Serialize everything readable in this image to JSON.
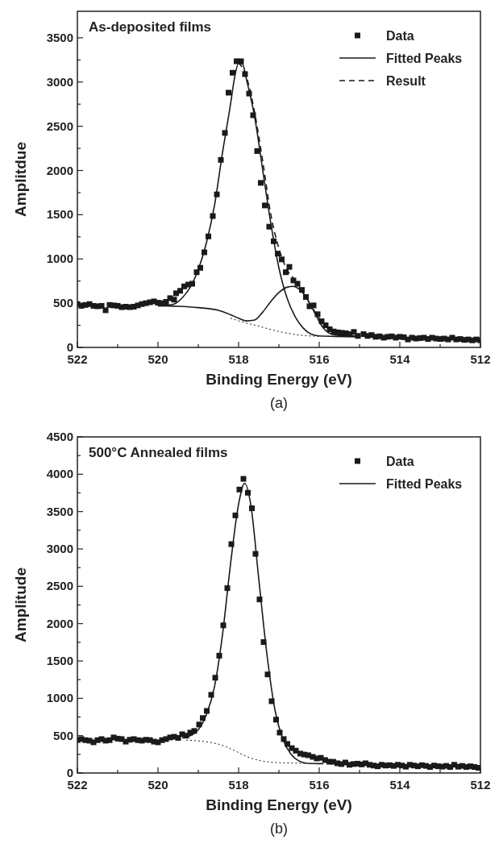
{
  "chart_data": [
    {
      "type": "scatter",
      "title": "As-deposited films",
      "xlabel": "Binding Energy (eV)",
      "ylabel": "Amplitdue",
      "annotations": [
        "(a)"
      ],
      "xlim": [
        522,
        512
      ],
      "ylim": [
        0,
        3800
      ],
      "xticks": [
        522,
        {
          "value": 521,
          "label": null
        },
        520,
        {
          "value": 519,
          "label": null
        },
        518,
        {
          "value": 517,
          "label": null
        },
        516,
        {
          "value": 515,
          "label": null
        },
        514,
        {
          "value": 513,
          "label": null
        },
        512
      ],
      "yticks": [
        0,
        {
          "value": 250,
          "label": null
        },
        500,
        {
          "value": 750,
          "label": null
        },
        1000,
        {
          "value": 1250,
          "label": null
        },
        1500,
        {
          "value": 1750,
          "label": null
        },
        2000,
        {
          "value": 2250,
          "label": null
        },
        2500,
        {
          "value": 2750,
          "label": null
        },
        3000,
        {
          "value": 3250,
          "label": null
        },
        3500
      ],
      "legend": "top right",
      "grid": false,
      "series": [
        {
          "name": "Data",
          "marker": "square",
          "color": "#1a1a1a",
          "x": [
            522,
            521.9,
            521.8,
            521.7,
            521.6,
            521.5,
            521.4,
            521.3,
            521.2,
            521.1,
            521.0,
            520.9,
            520.8,
            520.7,
            520.6,
            520.5,
            520.4,
            520.3,
            520.2,
            520.1,
            520.0,
            519.9,
            519.8,
            519.7,
            519.6,
            519.55,
            519.45,
            519.35,
            519.25,
            519.15,
            519.04,
            518.95,
            518.85,
            518.75,
            518.64,
            518.54,
            518.44,
            518.34,
            518.25,
            518.15,
            518.05,
            517.94,
            517.84,
            517.74,
            517.64,
            517.54,
            517.45,
            517.35,
            517.24,
            517.13,
            517.03,
            516.93,
            516.83,
            516.74,
            516.64,
            516.54,
            516.43,
            516.33,
            516.24,
            516.14,
            516.04,
            515.94,
            515.84,
            515.74,
            515.64,
            515.54,
            515.44,
            515.34,
            515.24,
            515.14,
            515.04,
            514.9,
            514.8,
            514.7,
            514.6,
            514.5,
            514.4,
            514.3,
            514.2,
            514.1,
            514.0,
            513.9,
            513.8,
            513.7,
            513.6,
            513.5,
            513.4,
            513.3,
            513.2,
            513.1,
            513.0,
            512.9,
            512.8,
            512.7,
            512.6,
            512.5,
            512.4,
            512.3,
            512.2,
            512.1,
            512.0
          ],
          "values": [
            490,
            470,
            480,
            490,
            470,
            465,
            470,
            420,
            480,
            475,
            470,
            455,
            460,
            455,
            460,
            475,
            490,
            500,
            510,
            520,
            505,
            500,
            515,
            557,
            540,
            612,
            640,
            690,
            710,
            720,
            850,
            900,
            1075,
            1255,
            1485,
            1730,
            2120,
            2425,
            2880,
            3105,
            3235,
            3235,
            3090,
            2870,
            2625,
            2220,
            1860,
            1605,
            1365,
            1200,
            1060,
            995,
            850,
            910,
            757,
            720,
            650,
            570,
            465,
            475,
            375,
            295,
            250,
            205,
            180,
            170,
            165,
            160,
            150,
            175,
            130,
            150,
            130,
            140,
            120,
            125,
            110,
            120,
            125,
            110,
            120,
            115,
            90,
            110,
            100,
            105,
            110,
            95,
            110,
            100,
            95,
            100,
            90,
            110,
            90,
            95,
            85,
            90,
            80,
            90,
            80
          ]
        },
        {
          "name": "Fitted Peaks",
          "type": "line",
          "line_style": "solid",
          "color": "#1a1a1a",
          "x": [
            520.0,
            519.8,
            519.6,
            519.4,
            519.2,
            519.0,
            518.8,
            518.6,
            518.4,
            518.2,
            518.1,
            518.0,
            517.9,
            517.8,
            517.6,
            517.4,
            517.2,
            517.0,
            516.8,
            516.6,
            516.4,
            516.2,
            516.0,
            515.0
          ],
          "values": [
            470,
            475,
            490,
            560,
            680,
            880,
            1180,
            1600,
            2200,
            2750,
            3050,
            3210,
            3200,
            3020,
            2600,
            2000,
            1400,
            900,
            560,
            350,
            220,
            150,
            130,
            120
          ]
        },
        {
          "type": "line",
          "line_style": "solid",
          "color": "#1a1a1a",
          "x": [
            520.0,
            519.5,
            519.0,
            518.5,
            518.2,
            518.0,
            517.8,
            517.6,
            517.4,
            517.2,
            517.0,
            516.8,
            516.65,
            516.5,
            516.3,
            516.1,
            515.9,
            515.7,
            515.5,
            515.0
          ],
          "values": [
            470,
            465,
            450,
            420,
            370,
            330,
            300,
            310,
            400,
            520,
            620,
            680,
            690,
            660,
            550,
            380,
            220,
            150,
            135,
            130
          ]
        },
        {
          "type": "line",
          "line_style": "dotted",
          "color": "#1a1a1a",
          "x": [
            518.2,
            518.0,
            517.5,
            517.0,
            516.5,
            516.0
          ],
          "values": [
            330,
            300,
            240,
            180,
            140,
            125
          ]
        },
        {
          "name": "Result",
          "type": "line",
          "line_style": "dashed",
          "color": "#1a1a1a",
          "x": [
            518.0,
            517.8,
            517.6,
            517.4,
            517.2,
            517.0,
            516.8,
            516.6,
            516.4,
            516.2,
            516.0,
            515.8
          ],
          "values": [
            3220,
            3050,
            2650,
            2100,
            1500,
            1120,
            880,
            760,
            620,
            470,
            330,
            250
          ]
        }
      ]
    },
    {
      "type": "scatter",
      "title": "500°C Annealed films",
      "xlabel": "Binding Energy (eV)",
      "ylabel": "Amplitude",
      "annotations": [
        "(b)"
      ],
      "xlim": [
        522,
        512
      ],
      "ylim": [
        0,
        4500
      ],
      "xticks": [
        522,
        {
          "value": 521,
          "label": null
        },
        520,
        {
          "value": 519,
          "label": null
        },
        518,
        {
          "value": 517,
          "label": null
        },
        516,
        {
          "value": 515,
          "label": null
        },
        514,
        {
          "value": 513,
          "label": null
        },
        512
      ],
      "yticks": [
        0,
        {
          "value": 250,
          "label": null
        },
        500,
        {
          "value": 750,
          "label": null
        },
        1000,
        {
          "value": 1250,
          "label": null
        },
        1500,
        {
          "value": 1750,
          "label": null
        },
        2000,
        {
          "value": 2250,
          "label": null
        },
        2500,
        {
          "value": 2750,
          "label": null
        },
        3000,
        {
          "value": 3250,
          "label": null
        },
        3500,
        {
          "value": 3750,
          "label": null
        },
        4000,
        {
          "value": 4250,
          "label": null
        },
        4500
      ],
      "legend": "top right",
      "grid": false,
      "series": [
        {
          "name": "Data",
          "marker": "square",
          "color": "#1a1a1a",
          "x": [
            522.0,
            521.9,
            521.8,
            521.7,
            521.6,
            521.5,
            521.4,
            521.3,
            521.2,
            521.1,
            521.0,
            520.9,
            520.8,
            520.7,
            520.6,
            520.5,
            520.4,
            520.3,
            520.2,
            520.1,
            520.0,
            519.9,
            519.8,
            519.7,
            519.6,
            519.5,
            519.4,
            519.3,
            519.2,
            519.1,
            518.98,
            518.89,
            518.79,
            518.68,
            518.58,
            518.48,
            518.38,
            518.28,
            518.18,
            518.08,
            517.98,
            517.88,
            517.77,
            517.67,
            517.58,
            517.48,
            517.38,
            517.28,
            517.18,
            517.07,
            516.98,
            516.88,
            516.79,
            516.68,
            516.58,
            516.47,
            516.37,
            516.27,
            516.16,
            516.06,
            515.96,
            515.85,
            515.75,
            515.65,
            515.55,
            515.45,
            515.35,
            515.25,
            515.15,
            515.05,
            514.95,
            514.85,
            514.75,
            514.65,
            514.55,
            514.45,
            514.35,
            514.25,
            514.15,
            514.05,
            513.95,
            513.85,
            513.75,
            513.65,
            513.55,
            513.45,
            513.35,
            513.25,
            513.15,
            513.05,
            512.95,
            512.85,
            512.75,
            512.65,
            512.55,
            512.45,
            512.35,
            512.25,
            512.15,
            512.05
          ],
          "values": [
            441,
            454,
            440,
            433,
            411,
            440,
            454,
            433,
            440,
            476,
            460,
            454,
            420,
            445,
            454,
            440,
            433,
            445,
            441,
            420,
            411,
            440,
            454,
            476,
            485,
            470,
            519,
            500,
            541,
            563,
            649,
            736,
            831,
            1047,
            1276,
            1571,
            1977,
            2475,
            3064,
            3449,
            3795,
            3938,
            3752,
            3544,
            2934,
            2324,
            1753,
            1320,
            961,
            714,
            541,
            454,
            389,
            333,
            299,
            260,
            247,
            238,
            216,
            195,
            203,
            173,
            151,
            150,
            130,
            120,
            140,
            110,
            120,
            125,
            115,
            130,
            110,
            100,
            90,
            110,
            100,
            105,
            95,
            110,
            100,
            85,
            110,
            100,
            90,
            105,
            95,
            80,
            100,
            90,
            85,
            95,
            80,
            110,
            85,
            95,
            80,
            90,
            80,
            70
          ]
        },
        {
          "name": "Fitted Peaks",
          "type": "line",
          "line_style": "solid",
          "color": "#1a1a1a",
          "x": [
            519.4,
            519.2,
            519.0,
            518.8,
            518.6,
            518.4,
            518.2,
            518.0,
            517.85,
            517.7,
            517.5,
            517.3,
            517.1,
            516.9,
            516.7,
            516.5,
            516.3,
            516.0,
            515.9
          ],
          "values": [
            470,
            500,
            580,
            780,
            1150,
            1850,
            2800,
            3600,
            3880,
            3600,
            2600,
            1600,
            850,
            450,
            250,
            160,
            130,
            125,
            125
          ]
        },
        {
          "type": "line",
          "line_style": "dotted",
          "color": "#1a1a1a",
          "x": [
            519.3,
            519.0,
            518.7,
            518.4,
            518.1,
            517.8,
            517.5,
            517.2,
            516.8,
            516.3
          ],
          "values": [
            440,
            430,
            410,
            370,
            300,
            220,
            170,
            145,
            135,
            128
          ]
        }
      ]
    }
  ]
}
